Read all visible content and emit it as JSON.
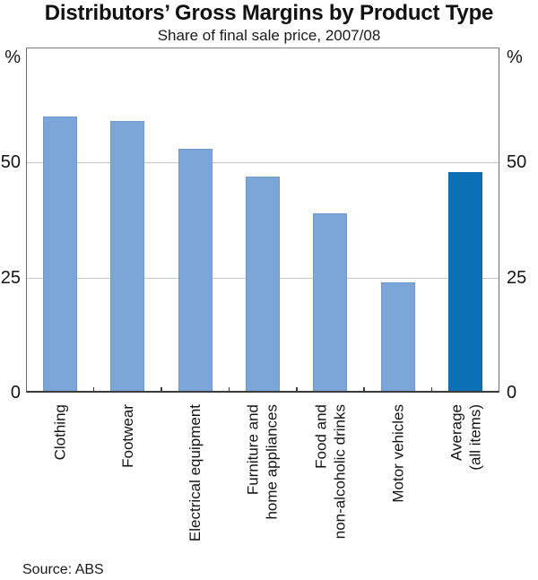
{
  "chart_data": {
    "type": "bar",
    "title": "Distributors’ Gross Margins by Product Type",
    "subtitle": "Share of final sale price, 2007/08",
    "unit": "%",
    "categories": [
      "Clothing",
      "Footwear",
      "Electrical equipment",
      "Furniture and\nhome appliances",
      "Food and\nnon-alcoholic drinks",
      "Motor vehicles",
      "Average\n(all items)"
    ],
    "values": [
      60,
      59,
      53,
      47,
      39,
      24,
      48
    ],
    "ylim": [
      0,
      75
    ],
    "yticks": [
      0,
      25,
      50
    ],
    "grid": "horizontal",
    "legend": "none",
    "highlight_index": 6,
    "bar_color": "#7CA5D8",
    "highlight_color": "#0B70B5",
    "gridline_color": "#C6C6C6",
    "source_note": "Source: ABS"
  }
}
